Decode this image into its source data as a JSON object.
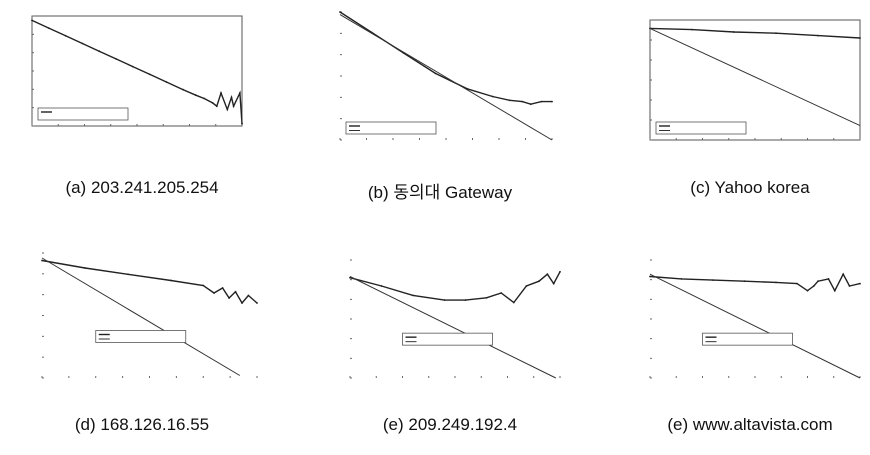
{
  "captions": [
    "(a) 203.241.205.254",
    "(b) 동의대 Gateway",
    "(c) Yahoo korea",
    "(d) 168.126.16.55",
    "(e) 209.249.192.4",
    "(e) www.altavista.com"
  ],
  "chart_data": [
    {
      "type": "line",
      "caption": "(a) 203.241.205.254",
      "xlabel": "",
      "ylabel": "",
      "ylim": [
        0,
        1
      ],
      "grid": false,
      "legend": "bottom-left",
      "series": [
        {
          "x": [
            0,
            0.08,
            0.16,
            0.24,
            0.32,
            0.4,
            0.48,
            0.56,
            0.64,
            0.72,
            0.78,
            0.82,
            0.86,
            0.88,
            0.9,
            0.93,
            0.95,
            0.96,
            0.99,
            1.0
          ],
          "y": [
            0.96,
            0.89,
            0.82,
            0.75,
            0.68,
            0.61,
            0.54,
            0.47,
            0.4,
            0.33,
            0.28,
            0.25,
            0.21,
            0.18,
            0.3,
            0.15,
            0.26,
            0.18,
            0.3,
            0.02
          ]
        }
      ]
    },
    {
      "type": "line",
      "caption": "(b) 동의대 Gateway",
      "xlabel": "",
      "ylabel": "",
      "ylim": [
        0,
        1
      ],
      "grid": false,
      "legend": "bottom-left",
      "series": [
        {
          "x": [
            0,
            0.15,
            0.3,
            0.45,
            0.6,
            0.72,
            0.8,
            0.86,
            0.9,
            0.95,
            1.0
          ],
          "y": [
            1.0,
            0.84,
            0.68,
            0.52,
            0.4,
            0.34,
            0.31,
            0.3,
            0.28,
            0.3,
            0.3
          ]
        },
        {
          "x": [
            0,
            1.0
          ],
          "y": [
            0.98,
            0.0
          ]
        }
      ]
    },
    {
      "type": "line",
      "caption": "(c) Yahoo korea",
      "xlabel": "",
      "ylabel": "",
      "ylim": [
        0,
        1
      ],
      "grid": false,
      "legend": "bottom-left",
      "series": [
        {
          "x": [
            0,
            0.2,
            0.4,
            0.6,
            0.8,
            1.0
          ],
          "y": [
            0.93,
            0.92,
            0.9,
            0.89,
            0.87,
            0.85
          ]
        },
        {
          "x": [
            0,
            1.0
          ],
          "y": [
            0.93,
            0.12
          ]
        }
      ]
    },
    {
      "type": "line",
      "caption": "(d) 168.126.16.55",
      "xlabel": "",
      "ylabel": "",
      "ylim": [
        0,
        1
      ],
      "grid": false,
      "legend": "bottom-center",
      "series": [
        {
          "x": [
            0,
            0.2,
            0.4,
            0.6,
            0.75,
            0.8,
            0.84,
            0.87,
            0.9,
            0.93,
            0.96,
            1.0
          ],
          "y": [
            0.94,
            0.88,
            0.83,
            0.78,
            0.74,
            0.68,
            0.72,
            0.64,
            0.69,
            0.6,
            0.66,
            0.6
          ]
        },
        {
          "x": [
            0,
            0.92
          ],
          "y": [
            0.96,
            0.02
          ]
        }
      ]
    },
    {
      "type": "line",
      "caption": "(e) 209.249.192.4",
      "xlabel": "",
      "ylabel": "",
      "ylim": [
        0,
        1
      ],
      "grid": false,
      "legend": "bottom-center",
      "series": [
        {
          "x": [
            0,
            0.15,
            0.3,
            0.45,
            0.55,
            0.65,
            0.72,
            0.78,
            0.84,
            0.9,
            0.94,
            0.97,
            1.0
          ],
          "y": [
            0.85,
            0.78,
            0.7,
            0.66,
            0.66,
            0.68,
            0.72,
            0.64,
            0.78,
            0.82,
            0.88,
            0.8,
            0.9
          ]
        },
        {
          "x": [
            0,
            0.98
          ],
          "y": [
            0.86,
            0.0
          ]
        }
      ]
    },
    {
      "type": "line",
      "caption": "(e) www.altavista.com",
      "xlabel": "",
      "ylabel": "",
      "ylim": [
        0,
        1
      ],
      "grid": false,
      "legend": "bottom-center",
      "series": [
        {
          "x": [
            0,
            0.15,
            0.3,
            0.45,
            0.6,
            0.7,
            0.75,
            0.78,
            0.8,
            0.85,
            0.88,
            0.92,
            0.95,
            1.0
          ],
          "y": [
            0.86,
            0.84,
            0.83,
            0.82,
            0.81,
            0.8,
            0.74,
            0.78,
            0.82,
            0.84,
            0.74,
            0.88,
            0.78,
            0.8
          ]
        },
        {
          "x": [
            0,
            1.0
          ],
          "y": [
            0.88,
            0.0
          ]
        }
      ]
    }
  ]
}
